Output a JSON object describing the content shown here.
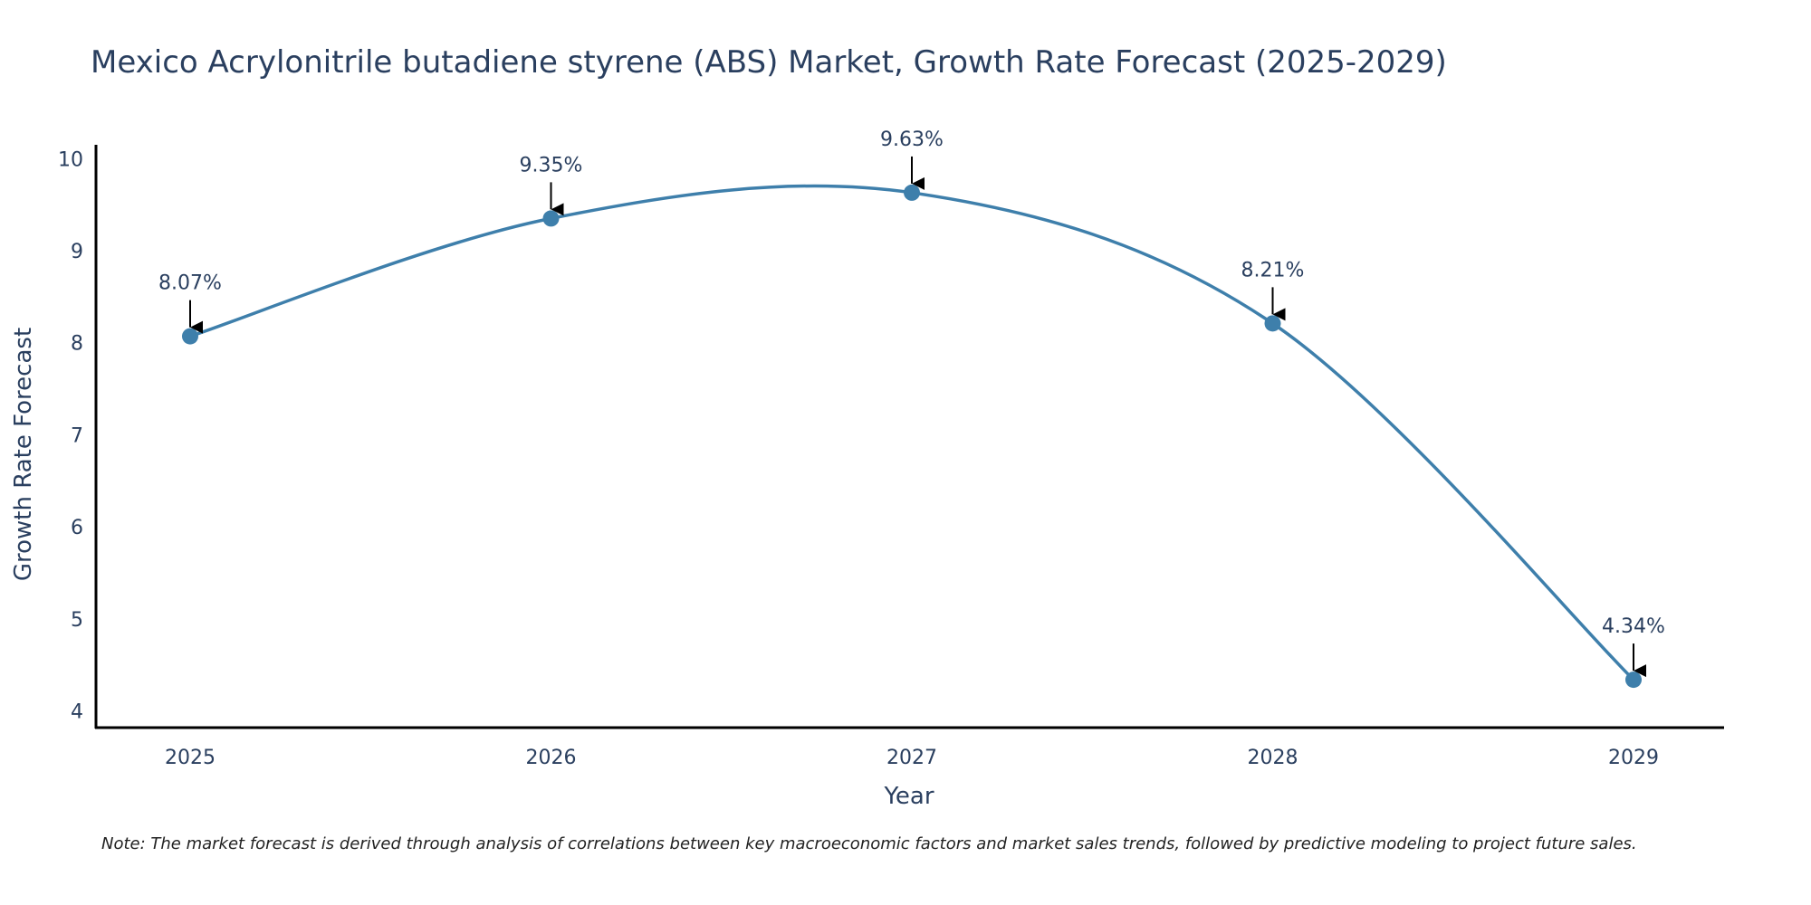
{
  "chart_data": {
    "type": "line",
    "title": "Mexico Acrylonitrile butadiene styrene (ABS) Market, Growth Rate Forecast (2025-2029)",
    "xlabel": "Year",
    "ylabel": "Growth Rate Forecast",
    "categories": [
      "2025",
      "2026",
      "2027",
      "2028",
      "2029"
    ],
    "values": [
      8.07,
      9.35,
      9.63,
      8.21,
      4.34
    ],
    "data_labels": [
      "8.07%",
      "9.35%",
      "9.63%",
      "8.21%",
      "4.34%"
    ],
    "yticks": [
      4,
      5,
      6,
      7,
      8,
      9,
      10
    ],
    "ylim": [
      3.82,
      10.15
    ],
    "grid": false,
    "line_shape": "spline",
    "colors": {
      "line": "#3e7fab",
      "marker": "#3e7fab",
      "axis": "#000000",
      "arrow": "#000000"
    },
    "note": "Note: The market forecast is derived through analysis of correlations between key macroeconomic factors and market sales trends, followed by predictive modeling to project future sales."
  }
}
